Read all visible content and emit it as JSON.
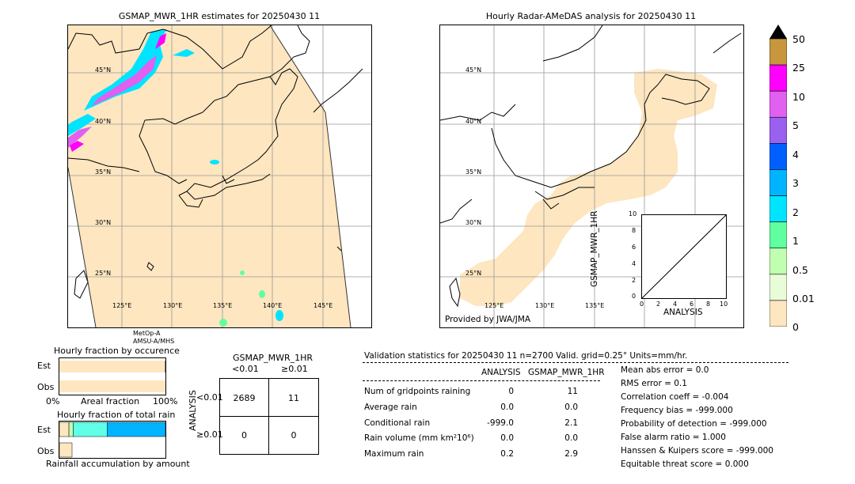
{
  "left_map": {
    "title": "GSMAP_MWR_1HR estimates for 20250430 11",
    "lat_labels": [
      "45°N",
      "40°N",
      "35°N",
      "30°N",
      "25°N"
    ],
    "lon_labels": [
      "125°E",
      "130°E",
      "135°E",
      "140°E",
      "145°E"
    ],
    "satellite_line1": "MetOp-A",
    "satellite_line2": "AMSU-A/MHS"
  },
  "right_map": {
    "title": "Hourly Radar-AMeDAS analysis for 20250430 11",
    "lat_labels": [
      "45°N",
      "40°N",
      "35°N",
      "30°N",
      "25°N"
    ],
    "lon_labels": [
      "125°E",
      "130°E",
      "135°E"
    ],
    "credit": "Provided by JWA/JMA"
  },
  "colorbar": {
    "labels": [
      "50",
      "25",
      "10",
      "5",
      "4",
      "3",
      "2",
      "1",
      "0.5",
      "0.01",
      "0"
    ],
    "colors": [
      "#c8963c",
      "#ff00ff",
      "#e060f0",
      "#9a60f0",
      "#0060ff",
      "#00b4ff",
      "#00e4ff",
      "#60ffa0",
      "#c0ffb0",
      "#e8fcd8",
      "#fde6c0"
    ],
    "overflow_color": "#000000"
  },
  "inset_scatter": {
    "ylabel": "GSMAP_MWR_1HR",
    "xlabel": "ANALYSIS",
    "ticks": [
      "0",
      "2",
      "4",
      "6",
      "8",
      "10"
    ],
    "yticks": [
      "0",
      "2",
      "4",
      "6",
      "8",
      "10"
    ]
  },
  "fraction_occurrence": {
    "title": "Hourly fraction by occurence",
    "est_label": "Est",
    "obs_label": "Obs",
    "axis_left": "0%",
    "axis_mid": "Areal fraction",
    "axis_right": "100%"
  },
  "fraction_total": {
    "title": "Hourly fraction of total rain",
    "est_label": "Est",
    "obs_label": "Obs",
    "footer": "Rainfall accumulation by amount"
  },
  "contingency": {
    "title": "GSMAP_MWR_1HR",
    "col_lt": "<0.01",
    "col_ge": "≥0.01",
    "row_axis": "ANALYSIS",
    "row_lt": "<0.01",
    "row_ge": "≥0.01",
    "cells": [
      "2689",
      "11",
      "0",
      "0"
    ]
  },
  "validation": {
    "header": "Validation statistics for 20250430 11  n=2700 Valid. grid=0.25° Units=mm/hr.",
    "col_analysis": "ANALYSIS",
    "col_gsmap": "GSMAP_MWR_1HR",
    "rows": [
      {
        "label": "Num of gridpoints raining",
        "analysis": "0",
        "gsmap": "11"
      },
      {
        "label": "Average rain",
        "analysis": "0.0",
        "gsmap": "0.0"
      },
      {
        "label": "Conditional rain",
        "analysis": "-999.0",
        "gsmap": "2.1"
      },
      {
        "label": "Rain volume (mm km²10⁶)",
        "analysis": "0.0",
        "gsmap": "0.0"
      },
      {
        "label": "Maximum rain",
        "analysis": "0.2",
        "gsmap": "2.9"
      }
    ],
    "scores": [
      "Mean abs error =    0.0",
      "RMS error =    0.1",
      "Correlation coeff = -0.004",
      "Frequency bias = -999.000",
      "Probability of detection = -999.000",
      "False alarm ratio =  1.000",
      "Hanssen & Kuipers score = -999.000",
      "Equitable threat score =  0.000"
    ]
  },
  "chart_data": {
    "type": "table",
    "contingency_table": {
      "rows": [
        "ANALYSIS <0.01",
        "ANALYSIS ≥0.01"
      ],
      "columns": [
        "GSMAP_MWR_1HR <0.01",
        "GSMAP_MWR_1HR ≥0.01"
      ],
      "values": [
        [
          2689,
          11
        ],
        [
          0,
          0
        ]
      ]
    },
    "occurrence_fraction": {
      "est_no_rain": 0.996,
      "obs_no_rain": 1.0
    },
    "total_rain_fraction_est": [
      {
        "bin": "0.01-0.5",
        "fraction": 0.09
      },
      {
        "bin": "0.5-1",
        "fraction": 0.04
      },
      {
        "bin": "1-2",
        "fraction": 0.32
      },
      {
        "bin": "2-3",
        "fraction": 0.55
      }
    ],
    "total_rain_fraction_obs": [
      {
        "bin": "0.01-0.5",
        "fraction": 1.0
      }
    ]
  }
}
